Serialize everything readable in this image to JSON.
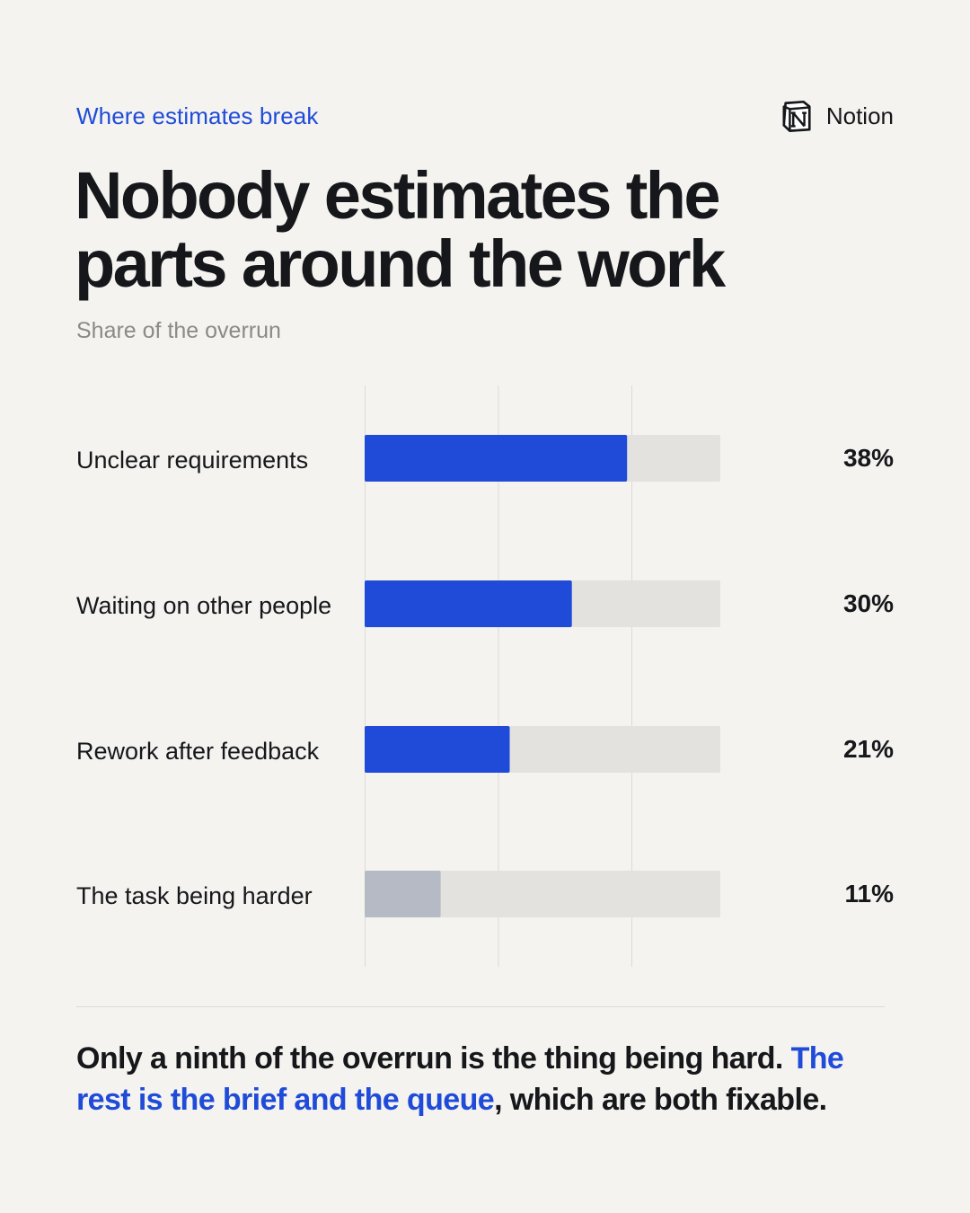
{
  "kicker": "Where estimates break",
  "brand": {
    "name": "Notion",
    "icon": "notion-logo-icon"
  },
  "headline": "Nobody estimates the parts around the work",
  "subtitle": "Share of the overrun",
  "colors": {
    "accent": "#1f4bd8",
    "muted_bar": "#b5bac4",
    "track": "#e3e2de",
    "background": "#f4f3f0"
  },
  "chart_data": {
    "type": "bar",
    "orientation": "horizontal",
    "categories": [
      "Unclear requirements",
      "Waiting on other people",
      "Rework after feedback",
      "The task being harder"
    ],
    "values": [
      38,
      30,
      21,
      11
    ],
    "value_labels": [
      "38%",
      "30%",
      "21%",
      "11%"
    ],
    "highlighted": [
      true,
      true,
      true,
      false
    ],
    "xlim": [
      0,
      51.5
    ],
    "grid": true,
    "legend": "none"
  },
  "takeaway": {
    "part1": "Only a ninth of the overrun is the thing being hard. ",
    "highlight": "The rest is the brief and the queue",
    "part2": ", which are both fixable."
  }
}
